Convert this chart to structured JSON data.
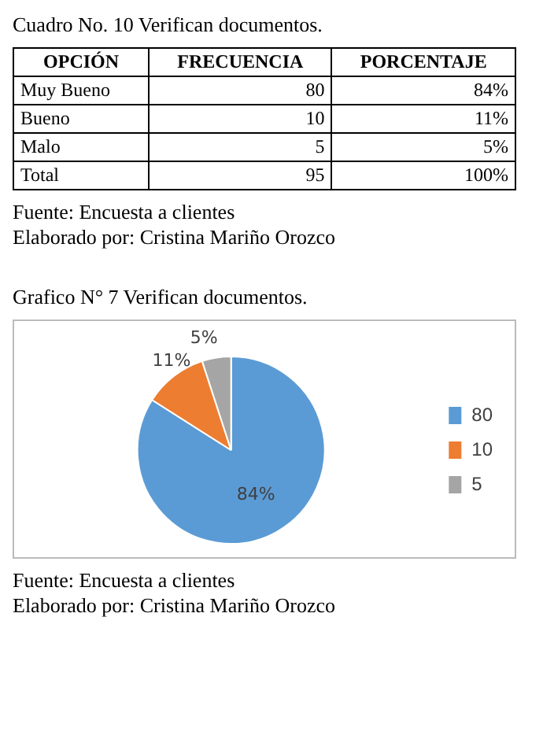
{
  "chart_data": [
    {
      "type": "other",
      "title": "Cuadro No. 10 Verifican documentos.",
      "xlabel": "OPCIÓN",
      "categories": [
        "Muy Bueno",
        "Bueno",
        "Malo",
        "Total"
      ],
      "data_labels": true,
      "series": [
        {
          "name": "FRECUENCIA",
          "values": [
            80,
            10,
            5,
            95
          ]
        },
        {
          "name": "PORCENTAJE",
          "values": [
            84,
            11,
            5,
            100
          ],
          "value_labels": [
            "84%",
            "11%",
            "5%",
            "100%"
          ]
        }
      ],
      "annotations": [
        "Fuente: Encuesta a clientes",
        "Elaborado por: Cristina Mariño Orozco"
      ]
    },
    {
      "type": "pie",
      "title": "Grafico N° 7 Verifican documentos.",
      "categories": [
        "80",
        "10",
        "5"
      ],
      "values": [
        84,
        11,
        5
      ],
      "value_labels": [
        "84%",
        "11%",
        "5%"
      ],
      "colors": [
        "#5b9bd5",
        "#ed7d31",
        "#a5a5a5"
      ],
      "legend": "right",
      "annotations": [
        "Fuente: Encuesta a clientes",
        "Elaborado por: Cristina Mariño Orozco"
      ]
    }
  ]
}
